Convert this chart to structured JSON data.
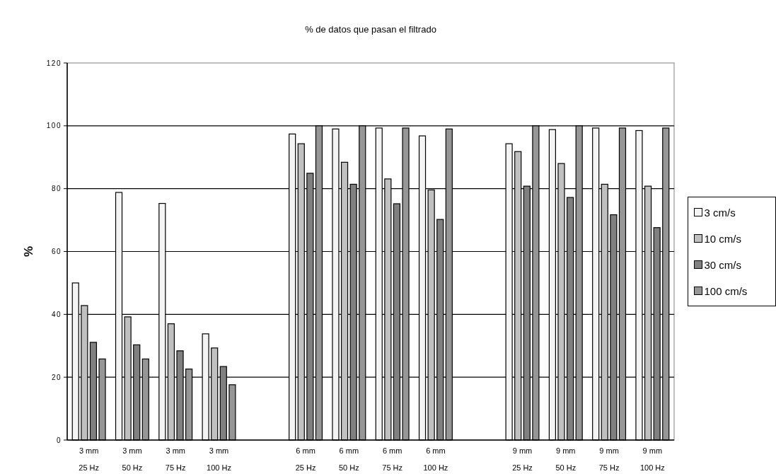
{
  "chart_data": {
    "type": "bar",
    "title": "% de datos que pasan el filtrado",
    "ylabel": "%",
    "categories": [
      "3 mm\n25 Hz",
      "3 mm\n50 Hz",
      "3 mm\n75 Hz",
      "3 mm\n100 Hz",
      null,
      "6 mm\n25 Hz",
      "6 mm\n50 Hz",
      "6 mm\n75 Hz",
      "6 mm\n100 Hz",
      null,
      "9 mm\n25 Hz",
      "9 mm\n50 Hz",
      "9 mm\n75 Hz",
      "9 mm\n100 Hz"
    ],
    "series": [
      {
        "name": "3 cm/s",
        "color": "#f4f4f4",
        "values": [
          50,
          78.8,
          75.3,
          33.8,
          null,
          97.4,
          99,
          99.3,
          96.8,
          null,
          94.3,
          98.8,
          99.3,
          98.5
        ]
      },
      {
        "name": "10 cm/s",
        "color": "#c0c0c0",
        "values": [
          42.8,
          39.2,
          37,
          29.3,
          null,
          94.3,
          88.4,
          83.1,
          79.6,
          null,
          91.8,
          88,
          81.4,
          80.8
        ]
      },
      {
        "name": "30 cm/s",
        "color": "#808080",
        "values": [
          31.1,
          30.3,
          28.4,
          23.4,
          null,
          84.9,
          81.4,
          75.2,
          70.2,
          null,
          80.8,
          77.2,
          71.7,
          67.6
        ]
      },
      {
        "name": "100 cm/s",
        "color": "#969696",
        "values": [
          25.8,
          25.8,
          22.6,
          17.6,
          null,
          100,
          100,
          99.3,
          99,
          null,
          100,
          100,
          99.3,
          99.3
        ]
      }
    ],
    "ylim": [
      0,
      120
    ],
    "yticks": [
      0,
      20,
      40,
      60,
      80,
      100,
      120
    ],
    "grid": "y",
    "legend": "right"
  }
}
